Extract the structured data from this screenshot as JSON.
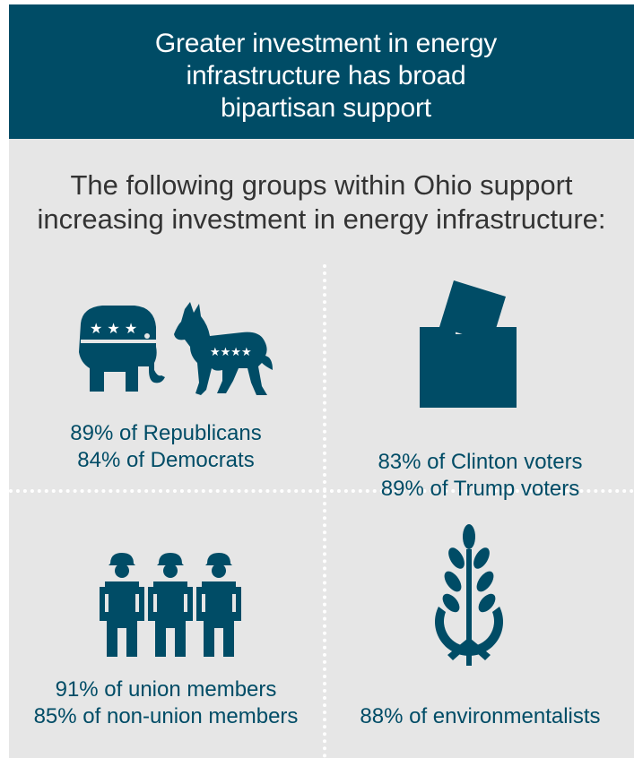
{
  "header": {
    "title_lines": [
      "Greater investment in energy",
      "infrastructure has broad",
      "bipartisan support"
    ]
  },
  "subtitle": {
    "lines": [
      "The following groups within Ohio support",
      "increasing investment in energy infrastructure:"
    ]
  },
  "groups": [
    {
      "icon": "elephant-donkey-icon",
      "lines": [
        "89% of Republicans",
        "84% of Democrats"
      ]
    },
    {
      "icon": "ballot-box-icon",
      "lines": [
        "83% of Clinton voters",
        "89% of Trump voters"
      ]
    },
    {
      "icon": "workers-icon",
      "lines": [
        "91% of union members",
        "85% of non-union members"
      ]
    },
    {
      "icon": "wheat-peace-icon",
      "lines": [
        "88% of environmentalists"
      ]
    }
  ],
  "colors": {
    "header_bg": "#004c66",
    "panel_bg": "#e6e6e6",
    "accent": "#004c66",
    "subtitle_text": "#333333"
  }
}
